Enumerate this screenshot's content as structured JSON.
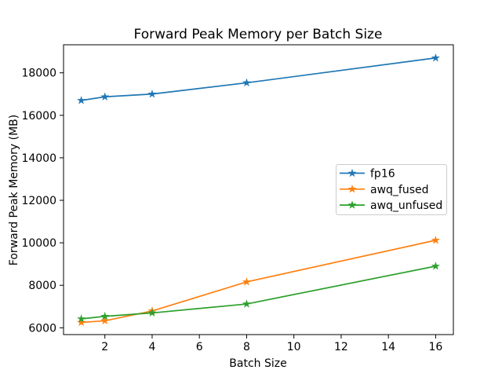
{
  "chart_data": {
    "type": "line",
    "title": "Forward Peak Memory per Batch Size",
    "xlabel": "Batch Size",
    "ylabel": "Forward Peak Memory (MB)",
    "x": [
      1,
      2,
      4,
      8,
      16
    ],
    "series": [
      {
        "name": "fp16",
        "color": "#1f77b4",
        "marker": "star",
        "values": [
          16700,
          16870,
          17000,
          17530,
          18700
        ]
      },
      {
        "name": "awq_fused",
        "color": "#ff7f0e",
        "marker": "star",
        "values": [
          6250,
          6330,
          6790,
          8160,
          10120
        ]
      },
      {
        "name": "awq_unfused",
        "color": "#2ca02c",
        "marker": "star",
        "values": [
          6420,
          6540,
          6700,
          7120,
          8900
        ]
      }
    ],
    "xticks": [
      2,
      4,
      6,
      8,
      10,
      12,
      14,
      16
    ],
    "yticks": [
      6000,
      8000,
      10000,
      12000,
      14000,
      16000,
      18000
    ],
    "xlim": [
      0.25,
      16.75
    ],
    "ylim": [
      5680,
      19320
    ],
    "grid": false,
    "legend_position": "center right",
    "legend_border_color": "#cccccc",
    "axis_color": "#000000"
  }
}
